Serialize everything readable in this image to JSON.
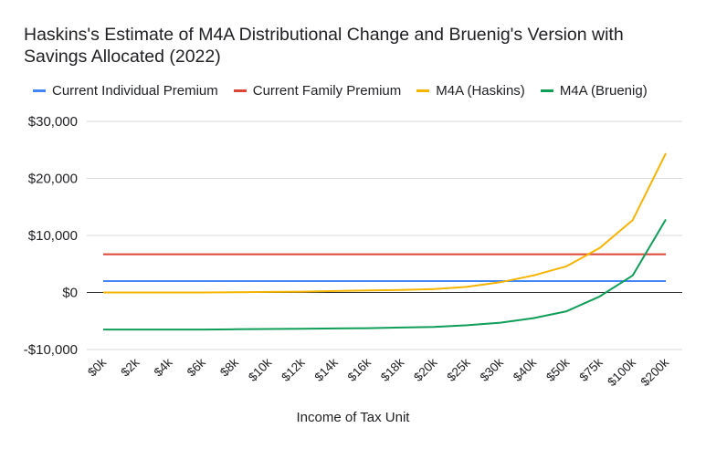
{
  "chart_data": {
    "type": "line",
    "title": "Haskins's Estimate of M4A Distributional Change and Bruenig's Version with Savings Allocated (2022)",
    "xlabel": "Income of Tax Unit",
    "ylabel": "",
    "categories": [
      "$0k",
      "$2k",
      "$4k",
      "$6k",
      "$8k",
      "$10k",
      "$12k",
      "$14k",
      "$16k",
      "$18k",
      "$20k",
      "$25k",
      "$30k",
      "$40k",
      "$50k",
      "$75k",
      "$100k",
      "$200k"
    ],
    "y_ticks": [
      -10000,
      0,
      10000,
      20000,
      30000
    ],
    "y_tick_labels": [
      "-$10,000",
      "$0",
      "$10,000",
      "$20,000",
      "$30,000"
    ],
    "ylim": [
      -10000,
      30000
    ],
    "grid": true,
    "legend_position": "top",
    "series": [
      {
        "name": "Current Individual Premium",
        "color": "#4285f4",
        "values": [
          2000,
          2000,
          2000,
          2000,
          2000,
          2000,
          2000,
          2000,
          2000,
          2000,
          2000,
          2000,
          2000,
          2000,
          2000,
          2000,
          2000,
          2000
        ]
      },
      {
        "name": "Current Family Premium",
        "color": "#db4437",
        "values": [
          6700,
          6700,
          6700,
          6700,
          6700,
          6700,
          6700,
          6700,
          6700,
          6700,
          6700,
          6700,
          6700,
          6700,
          6700,
          6700,
          6700,
          6700
        ]
      },
      {
        "name": "M4A (Haskins)",
        "color": "#f4b400",
        "values": [
          0,
          0,
          0,
          0,
          50,
          100,
          150,
          250,
          350,
          450,
          600,
          1000,
          1800,
          3000,
          4600,
          7800,
          12700,
          24400
        ]
      },
      {
        "name": "M4A (Bruenig)",
        "color": "#0f9d58",
        "values": [
          -6500,
          -6500,
          -6500,
          -6500,
          -6450,
          -6400,
          -6350,
          -6300,
          -6250,
          -6150,
          -6050,
          -5750,
          -5300,
          -4500,
          -3300,
          -700,
          3000,
          12800
        ]
      }
    ]
  }
}
